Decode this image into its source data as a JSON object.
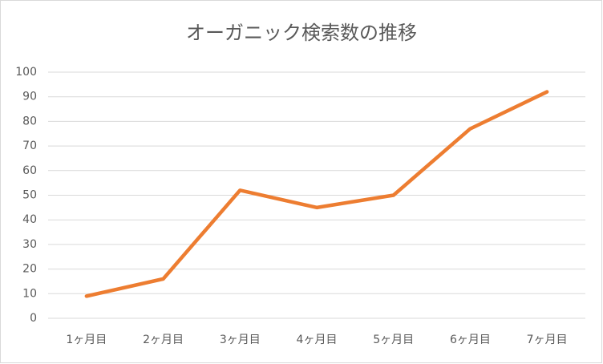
{
  "chart_data": {
    "type": "line",
    "title": "オーガニック検索数の推移",
    "categories": [
      "1ヶ月目",
      "2ヶ月目",
      "3ヶ月目",
      "4ヶ月目",
      "5ヶ月目",
      "6ヶ月目",
      "7ヶ月目"
    ],
    "values": [
      9,
      16,
      52,
      45,
      50,
      77,
      92
    ],
    "color": "#ed7d31",
    "ylim": [
      0,
      100
    ],
    "yticks": [
      0,
      10,
      20,
      30,
      40,
      50,
      60,
      70,
      80,
      90,
      100
    ],
    "grid": true
  }
}
